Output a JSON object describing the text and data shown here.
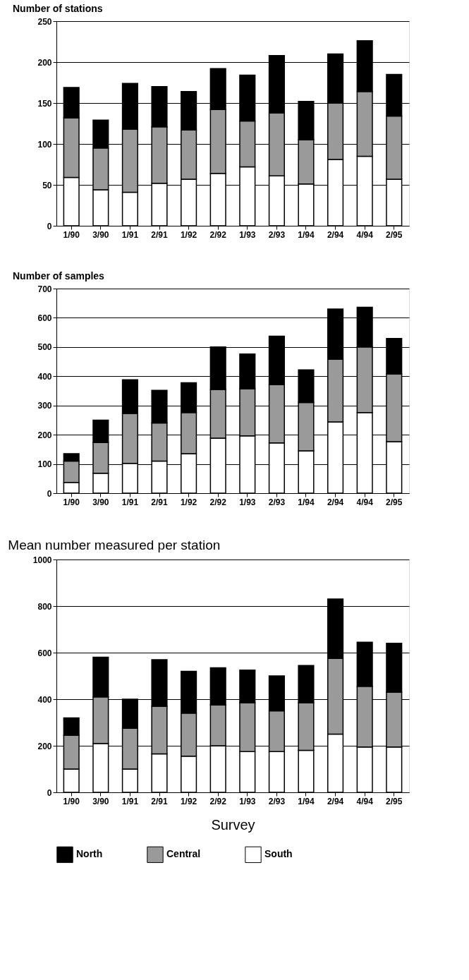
{
  "chart_data": [
    {
      "type": "bar",
      "title": "Number of stations",
      "stacked": true,
      "categories": [
        "1/90",
        "3/90",
        "1/91",
        "2/91",
        "1/92",
        "2/92",
        "1/93",
        "2/93",
        "1/94",
        "2/94",
        "4/94",
        "2/95"
      ],
      "ylim": [
        0,
        250
      ],
      "yticks": [
        0,
        50,
        100,
        150,
        200,
        250
      ],
      "grid": "y",
      "series": [
        {
          "color": "#ffffff",
          "values": [
            59,
            44,
            41,
            52,
            57,
            64,
            72,
            61,
            51,
            81,
            85,
            57
          ]
        },
        {
          "color": "#9a9a9a",
          "values": [
            73,
            51,
            77,
            69,
            60,
            78,
            56,
            77,
            54,
            69,
            79,
            77
          ]
        },
        {
          "color": "#000000",
          "values": [
            37,
            34,
            56,
            49,
            47,
            50,
            56,
            70,
            47,
            60,
            62,
            51
          ]
        }
      ]
    },
    {
      "type": "bar",
      "title": "Number of samples",
      "stacked": true,
      "categories": [
        "1/90",
        "3/90",
        "1/91",
        "2/91",
        "1/92",
        "2/92",
        "1/93",
        "2/93",
        "1/94",
        "2/94",
        "4/94",
        "2/95"
      ],
      "ylim": [
        0,
        700
      ],
      "yticks": [
        0,
        100,
        200,
        300,
        400,
        500,
        600,
        700
      ],
      "grid": "y",
      "series": [
        {
          "color": "#ffffff",
          "values": [
            37,
            68,
            102,
            110,
            135,
            188,
            196,
            172,
            145,
            244,
            276,
            176
          ]
        },
        {
          "color": "#9a9a9a",
          "values": [
            73,
            105,
            171,
            130,
            141,
            167,
            161,
            200,
            165,
            214,
            224,
            232
          ]
        },
        {
          "color": "#000000",
          "values": [
            25,
            77,
            115,
            112,
            102,
            145,
            119,
            165,
            112,
            172,
            136,
            121
          ]
        }
      ]
    },
    {
      "type": "bar",
      "title": "Mean number measured per station",
      "xlabel": "Survey",
      "stacked": true,
      "categories": [
        "1/90",
        "3/90",
        "1/91",
        "2/91",
        "1/92",
        "2/92",
        "1/93",
        "2/93",
        "1/94",
        "2/94",
        "4/94",
        "2/95"
      ],
      "ylim": [
        0,
        1000
      ],
      "yticks": [
        0,
        200,
        400,
        600,
        800,
        1000
      ],
      "grid": "y",
      "legend": "bottom",
      "series": [
        {
          "name": "South",
          "color": "#ffffff",
          "values": [
            100,
            210,
            100,
            165,
            155,
            200,
            175,
            175,
            180,
            250,
            195,
            195
          ]
        },
        {
          "name": "Central",
          "color": "#9a9a9a",
          "values": [
            145,
            200,
            175,
            205,
            185,
            175,
            210,
            175,
            205,
            325,
            260,
            235
          ]
        },
        {
          "name": "North",
          "color": "#000000",
          "values": [
            75,
            170,
            125,
            200,
            180,
            160,
            140,
            150,
            160,
            255,
            190,
            210
          ]
        }
      ]
    }
  ]
}
